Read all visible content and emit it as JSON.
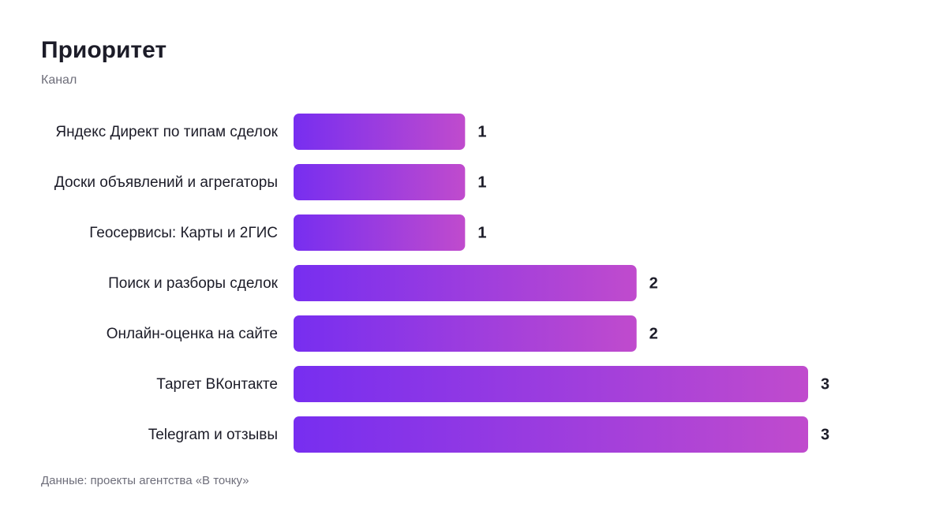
{
  "chart_data": {
    "type": "hbar",
    "title": "Приоритет",
    "subtitle": "Канал",
    "source": "Данные: проекты агентства «В точку»",
    "categories": [
      "Яндекс Директ по типам сделок",
      "Доски объявлений и агрегаторы",
      "Геосервисы: Карты и 2ГИС",
      "Поиск и разборы сделок",
      "Онлайн-оценка на сайте",
      "Таргет ВКонтакте",
      "Telegram и отзывы"
    ],
    "values": [
      1,
      1,
      1,
      2,
      2,
      3,
      3
    ],
    "xlim": [
      0,
      3
    ],
    "gradient": [
      "#772ef0",
      "#c04bcd"
    ]
  }
}
